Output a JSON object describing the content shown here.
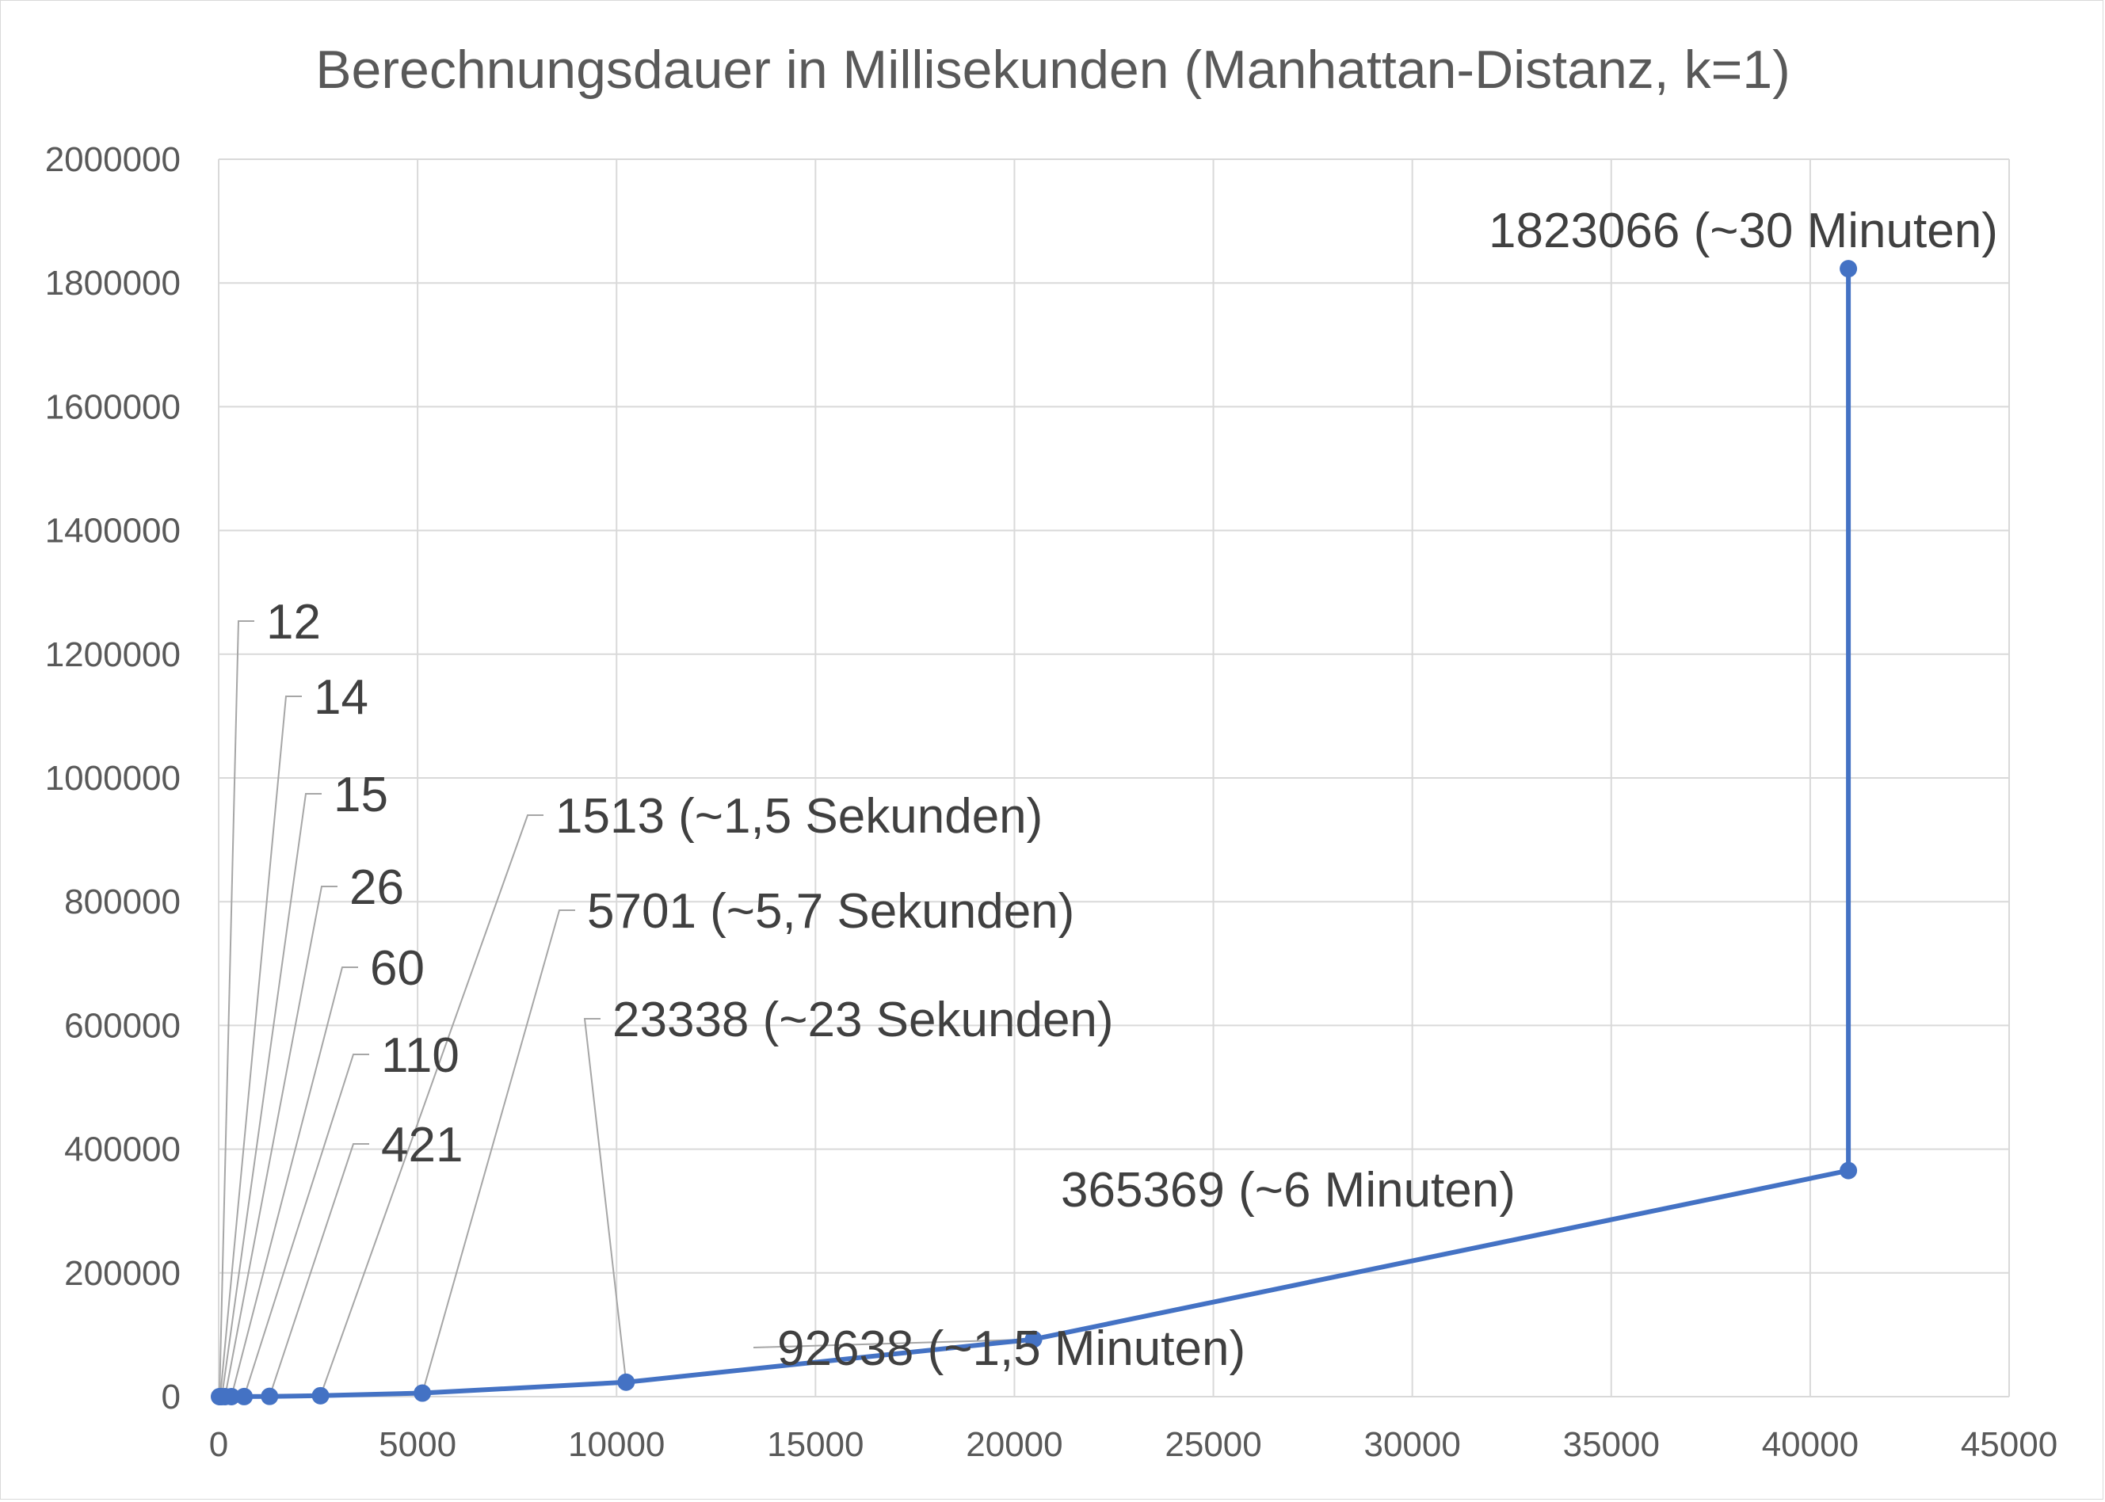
{
  "chart_data": {
    "type": "scatter",
    "title": "Berechnungsdauer in Millisekunden (Manhattan-Distanz, k=1)",
    "xlabel": "",
    "ylabel": "",
    "xlim": [
      0,
      45000
    ],
    "ylim": [
      0,
      2000000
    ],
    "x_ticks": [
      "0",
      "5000",
      "10000",
      "15000",
      "20000",
      "25000",
      "30000",
      "35000",
      "40000",
      "45000"
    ],
    "y_ticks": [
      "0",
      "200000",
      "400000",
      "600000",
      "800000",
      "1000000",
      "1200000",
      "1400000",
      "1600000",
      "1800000",
      "2000000"
    ],
    "grid": true,
    "legend": "none",
    "series_color": "#4472c4",
    "series": [
      {
        "points": [
          {
            "x": 20,
            "y": 12,
            "label": "12"
          },
          {
            "x": 40,
            "y": 14,
            "label": "14"
          },
          {
            "x": 80,
            "y": 15,
            "label": "15"
          },
          {
            "x": 160,
            "y": 26,
            "label": "26"
          },
          {
            "x": 320,
            "y": 60,
            "label": "60"
          },
          {
            "x": 640,
            "y": 110,
            "label": "110"
          },
          {
            "x": 1280,
            "y": 421,
            "label": "421"
          },
          {
            "x": 2560,
            "y": 1513,
            "label": "1513 (~1,5 Sekunden)"
          },
          {
            "x": 5120,
            "y": 5701,
            "label": "5701 (~5,7 Sekunden)"
          },
          {
            "x": 10240,
            "y": 23338,
            "label": "23338 (~23 Sekunden)"
          },
          {
            "x": 20480,
            "y": 92638,
            "label": "92638 (~1,5 Minuten)"
          },
          {
            "x": 40960,
            "y": 365369,
            "label": "365369 (~6 Minuten)"
          },
          {
            "x": 40960,
            "y": 1823066,
            "label": "1823066 (~30 Minuten)"
          }
        ]
      }
    ]
  }
}
